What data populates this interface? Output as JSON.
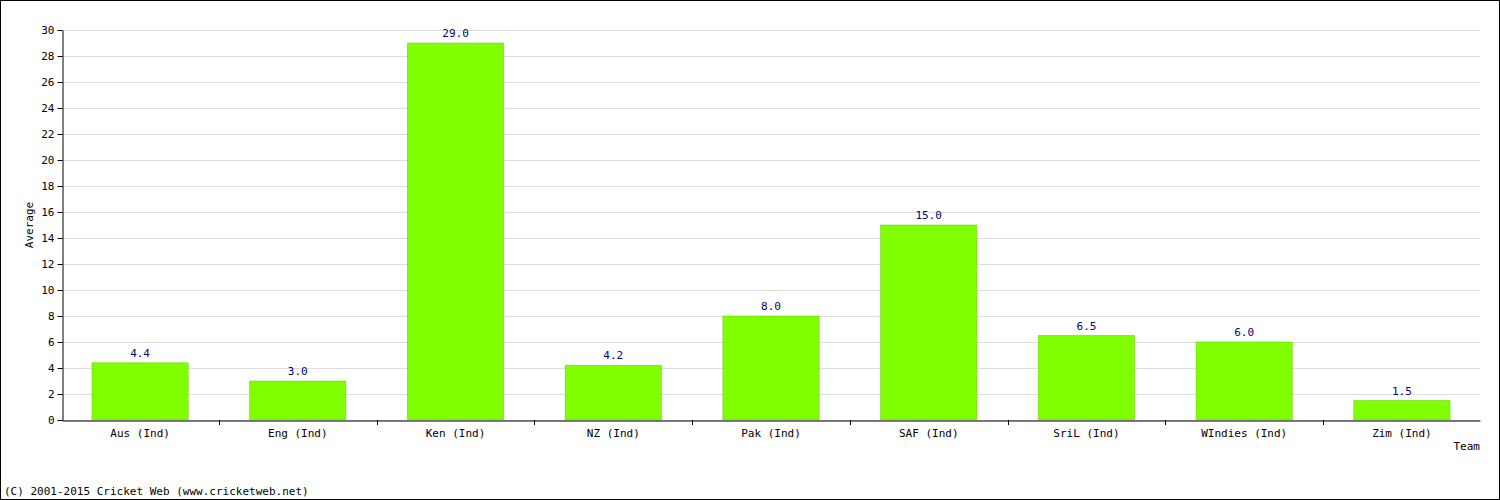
{
  "chart_data": {
    "type": "bar",
    "x_label": "Team",
    "y_label": "Average",
    "annotations": [
      "(C) 2001-2015 Cricket Web (www.cricketweb.net)"
    ],
    "categories": [
      "Aus (Ind)",
      "Eng (Ind)",
      "Ken (Ind)",
      "NZ (Ind)",
      "Pak (Ind)",
      "SAF (Ind)",
      "SriL (Ind)",
      "WIndies (Ind)",
      "Zim (Ind)"
    ],
    "values": [
      4.4,
      3.0,
      29.0,
      4.2,
      8.0,
      15.0,
      6.5,
      6.0,
      1.5
    ],
    "value_labels": [
      "4.4",
      "3.0",
      "29.0",
      "4.2",
      "8.0",
      "15.0",
      "6.5",
      "6.0",
      "1.5"
    ],
    "color": "#7fff00",
    "ylim": [
      0,
      30
    ],
    "yticks": [
      0,
      2,
      4,
      6,
      8,
      10,
      12,
      14,
      16,
      18,
      20,
      22,
      24,
      26,
      28,
      30
    ],
    "grid": true,
    "data_labels": true
  }
}
